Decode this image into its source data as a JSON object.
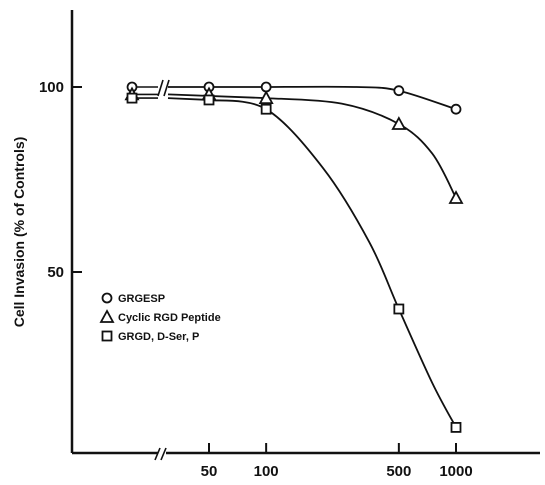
{
  "chart_data": {
    "type": "line",
    "title": "",
    "xlabel": "",
    "ylabel": "Cell Invasion (% of Controls)",
    "x_scale": "log",
    "x_axis_break": true,
    "x_ticks": [
      {
        "value": 50,
        "label": "50"
      },
      {
        "value": 100,
        "label": "100"
      },
      {
        "value": 500,
        "label": "500"
      },
      {
        "value": 1000,
        "label": "1000"
      }
    ],
    "y_ticks": [
      {
        "value": 100,
        "label": "100"
      },
      {
        "value": 50,
        "label": "50"
      }
    ],
    "legend_position": "left-center",
    "series": [
      {
        "name": "GRGESP",
        "marker": "circle",
        "baseline": 100,
        "points": [
          {
            "x": 50,
            "y": 100
          },
          {
            "x": 100,
            "y": 100
          },
          {
            "x": 500,
            "y": 99
          },
          {
            "x": 1000,
            "y": 94
          }
        ],
        "curve": [
          {
            "x": 100,
            "y": 100
          },
          {
            "x": 300,
            "y": 100
          },
          {
            "x": 500,
            "y": 99
          },
          {
            "x": 1000,
            "y": 94
          }
        ]
      },
      {
        "name": "Cyclic RGD Peptide",
        "marker": "triangle",
        "baseline": 98,
        "points": [
          {
            "x": 50,
            "y": 98
          },
          {
            "x": 100,
            "y": 97
          },
          {
            "x": 500,
            "y": 90
          },
          {
            "x": 1000,
            "y": 70
          }
        ],
        "curve": [
          {
            "x": 100,
            "y": 97
          },
          {
            "x": 250,
            "y": 95.5
          },
          {
            "x": 500,
            "y": 90
          },
          {
            "x": 750,
            "y": 82
          },
          {
            "x": 1000,
            "y": 70
          }
        ]
      },
      {
        "name": "GRGD, D-Ser, P",
        "marker": "square",
        "baseline": 97,
        "points": [
          {
            "x": 50,
            "y": 96.5
          },
          {
            "x": 100,
            "y": 94
          },
          {
            "x": 500,
            "y": 40
          },
          {
            "x": 1000,
            "y": 8
          }
        ],
        "curve": [
          {
            "x": 50,
            "y": 96.5
          },
          {
            "x": 100,
            "y": 94
          },
          {
            "x": 200,
            "y": 78
          },
          {
            "x": 350,
            "y": 58
          },
          {
            "x": 500,
            "y": 40
          },
          {
            "x": 750,
            "y": 20
          },
          {
            "x": 1000,
            "y": 8
          }
        ]
      }
    ]
  }
}
